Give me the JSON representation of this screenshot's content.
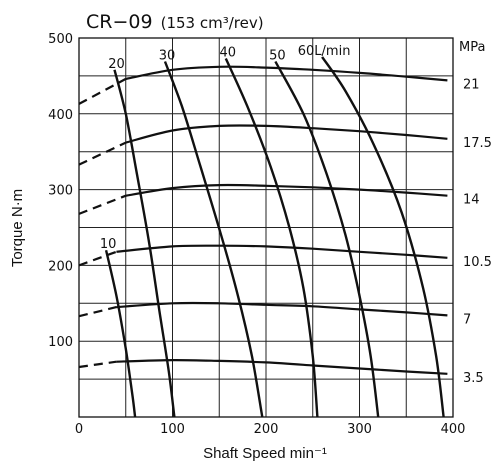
{
  "chart_data": {
    "type": "line",
    "title": "CR−09",
    "subtitle": "(153 cm³/rev)",
    "xlabel": "Shaft Speed   min⁻¹",
    "ylabel": "Torque  N·m",
    "xlim": [
      0,
      400
    ],
    "ylim": [
      0,
      500
    ],
    "x_ticks": [
      0,
      100,
      200,
      300,
      400
    ],
    "y_ticks": [
      100,
      200,
      300,
      400,
      500
    ],
    "grid": true,
    "pressure_unit": "MPa",
    "pressure_series": [
      {
        "name": "21",
        "dashed": [
          [
            0,
            413
          ],
          [
            50,
            446
          ]
        ],
        "solid": [
          [
            50,
            446
          ],
          [
            100,
            458
          ],
          [
            150,
            462
          ],
          [
            200,
            461
          ],
          [
            250,
            458
          ],
          [
            300,
            454
          ],
          [
            350,
            449
          ],
          [
            394,
            444
          ]
        ]
      },
      {
        "name": "17.5",
        "dashed": [
          [
            0,
            333
          ],
          [
            50,
            362
          ]
        ],
        "solid": [
          [
            50,
            362
          ],
          [
            100,
            378
          ],
          [
            150,
            384
          ],
          [
            200,
            384
          ],
          [
            250,
            381
          ],
          [
            300,
            377
          ],
          [
            350,
            372
          ],
          [
            394,
            367
          ]
        ]
      },
      {
        "name": "14",
        "dashed": [
          [
            0,
            268
          ],
          [
            50,
            292
          ]
        ],
        "solid": [
          [
            50,
            292
          ],
          [
            100,
            302
          ],
          [
            150,
            306
          ],
          [
            200,
            305
          ],
          [
            250,
            303
          ],
          [
            300,
            300
          ],
          [
            350,
            296
          ],
          [
            394,
            292
          ]
        ]
      },
      {
        "name": "10.5",
        "dashed": [
          [
            0,
            200
          ],
          [
            40,
            218
          ]
        ],
        "solid": [
          [
            40,
            218
          ],
          [
            100,
            225
          ],
          [
            150,
            226
          ],
          [
            200,
            225
          ],
          [
            250,
            222
          ],
          [
            300,
            218
          ],
          [
            350,
            214
          ],
          [
            394,
            210
          ]
        ]
      },
      {
        "name": "7",
        "dashed": [
          [
            0,
            133
          ],
          [
            40,
            145
          ]
        ],
        "solid": [
          [
            40,
            145
          ],
          [
            100,
            150
          ],
          [
            150,
            150
          ],
          [
            200,
            148
          ],
          [
            250,
            146
          ],
          [
            300,
            142
          ],
          [
            350,
            138
          ],
          [
            394,
            134
          ]
        ]
      },
      {
        "name": "3.5",
        "dashed": [
          [
            0,
            66
          ],
          [
            40,
            73
          ]
        ],
        "solid": [
          [
            40,
            73
          ],
          [
            100,
            75
          ],
          [
            150,
            74
          ],
          [
            200,
            72
          ],
          [
            250,
            68
          ],
          [
            300,
            64
          ],
          [
            350,
            60
          ],
          [
            394,
            57
          ]
        ]
      }
    ],
    "flow_series": [
      {
        "name": "10",
        "points": [
          [
            29,
            220
          ],
          [
            40,
            160
          ],
          [
            50,
            90
          ],
          [
            57,
            30
          ],
          [
            60,
            0
          ]
        ]
      },
      {
        "name": "20",
        "points": [
          [
            38,
            458
          ],
          [
            50,
            400
          ],
          [
            62,
            320
          ],
          [
            75,
            230
          ],
          [
            86,
            140
          ],
          [
            96,
            60
          ],
          [
            102,
            0
          ]
        ]
      },
      {
        "name": "30",
        "points": [
          [
            92,
            469
          ],
          [
            110,
            410
          ],
          [
            130,
            330
          ],
          [
            152,
            240
          ],
          [
            170,
            160
          ],
          [
            185,
            80
          ],
          [
            196,
            0
          ]
        ]
      },
      {
        "name": "40",
        "points": [
          [
            157,
            473
          ],
          [
            180,
            410
          ],
          [
            205,
            330
          ],
          [
            225,
            250
          ],
          [
            240,
            170
          ],
          [
            250,
            80
          ],
          [
            255,
            0
          ]
        ]
      },
      {
        "name": "50",
        "points": [
          [
            210,
            469
          ],
          [
            240,
            400
          ],
          [
            265,
            320
          ],
          [
            285,
            240
          ],
          [
            300,
            160
          ],
          [
            312,
            80
          ],
          [
            320,
            0
          ]
        ]
      },
      {
        "name": "60L/min",
        "points": [
          [
            260,
            475
          ],
          [
            285,
            430
          ],
          [
            315,
            360
          ],
          [
            345,
            270
          ],
          [
            368,
            170
          ],
          [
            382,
            80
          ],
          [
            390,
            0
          ]
        ]
      }
    ]
  }
}
